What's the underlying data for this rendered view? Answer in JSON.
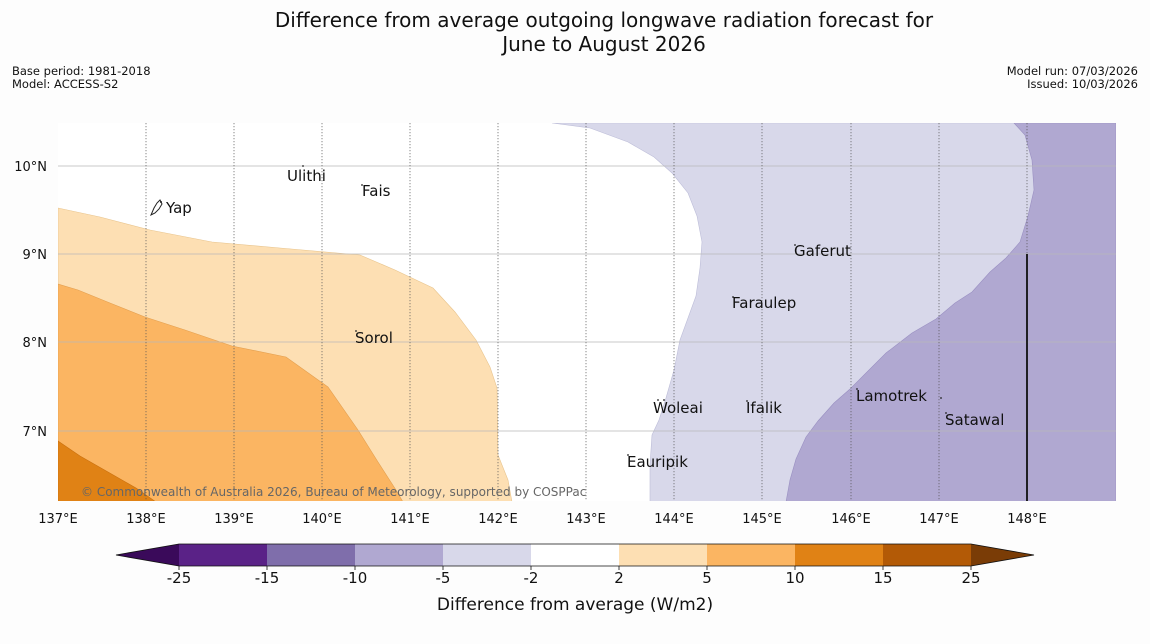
{
  "header": {
    "title_line1": "Difference from average outgoing longwave radiation forecast for",
    "title_line2": "June to August 2026",
    "base_period": "Base period: 1981-2018",
    "model": "Model: ACCESS-S2",
    "model_run": "Model run: 07/03/2026",
    "issued": "Issued: 10/03/2026"
  },
  "map": {
    "lon_ticks": [
      "137°E",
      "138°E",
      "139°E",
      "140°E",
      "141°E",
      "142°E",
      "143°E",
      "144°E",
      "145°E",
      "146°E",
      "147°E",
      "148°E"
    ],
    "lat_ticks": [
      "10°N",
      "9°N",
      "8°N",
      "7°N"
    ],
    "places": [
      {
        "name": "Ulithi"
      },
      {
        "name": "Fais"
      },
      {
        "name": "Yap"
      },
      {
        "name": "Gaferut"
      },
      {
        "name": "Faraulep"
      },
      {
        "name": "Sorol"
      },
      {
        "name": "Lamotrek"
      },
      {
        "name": "Woleai"
      },
      {
        "name": "Ifalik"
      },
      {
        "name": "Satawal"
      },
      {
        "name": "Eauripik"
      }
    ],
    "copyright": "© Commonwealth of Australia 2026, Bureau of Meteorology, supported by COSPPac"
  },
  "colorbar": {
    "label": "Difference from average (W/m2)",
    "ticks": [
      "-25",
      "-15",
      "-10",
      "-5",
      "-2",
      "2",
      "5",
      "10",
      "15",
      "25"
    ],
    "colors": {
      "below_min": "#3a0a5a",
      "c1": "#5a2287",
      "c2": "#7f6eab",
      "c3": "#b0a8d1",
      "c4": "#d8d8ea",
      "c5": "#ffffff",
      "c6": "#fddfb3",
      "c7": "#fbb562",
      "c8": "#e08215",
      "c9": "#b35a06",
      "above_max": "#7a3c06"
    }
  }
}
